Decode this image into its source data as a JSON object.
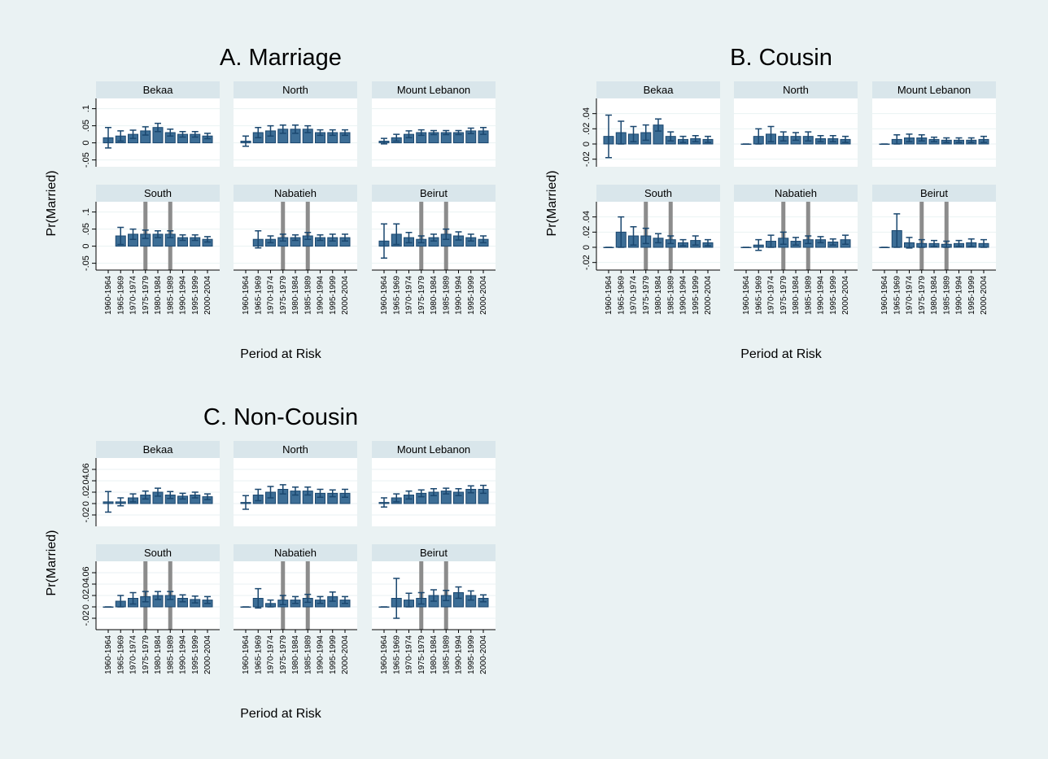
{
  "chart_data": [
    {
      "type": "bar",
      "title": "A. Marriage",
      "ylabel": "Pr(Married)",
      "xlabel": "Period at Risk",
      "categories": [
        "1960-1964",
        "1965-1969",
        "1970-1974",
        "1975-1979",
        "1980-1984",
        "1985-1989",
        "1990-1994",
        "1995-1999",
        "2000-2004"
      ],
      "ylim": [
        -0.07,
        0.13
      ],
      "yticks": [
        {
          "value": -0.05,
          "label": "-.05"
        },
        0,
        {
          "value": 0.05,
          "label": ".05"
        },
        {
          "value": 0.1,
          "label": ".1"
        }
      ],
      "panels": [
        {
          "name": "Bekaa",
          "values": [
            0.015,
            0.02,
            0.025,
            0.035,
            0.045,
            0.03,
            0.025,
            0.025,
            0.02
          ],
          "errors": [
            0.03,
            0.015,
            0.012,
            0.012,
            0.012,
            0.01,
            0.008,
            0.008,
            0.008
          ]
        },
        {
          "name": "North",
          "values": [
            0.005,
            0.03,
            0.035,
            0.04,
            0.04,
            0.04,
            0.03,
            0.03,
            0.03
          ],
          "errors": [
            0.015,
            0.015,
            0.015,
            0.012,
            0.012,
            0.01,
            0.008,
            0.008,
            0.008
          ]
        },
        {
          "name": "Mount Lebanon",
          "values": [
            0.005,
            0.015,
            0.025,
            0.03,
            0.03,
            0.03,
            0.03,
            0.035,
            0.035
          ],
          "errors": [
            0.008,
            0.01,
            0.01,
            0.008,
            0.006,
            0.006,
            0.006,
            0.008,
            0.01
          ]
        },
        {
          "name": "South",
          "values": [
            null,
            0.03,
            0.035,
            0.035,
            0.035,
            0.035,
            0.025,
            0.025,
            0.02
          ],
          "errors": [
            null,
            0.025,
            0.015,
            0.012,
            0.01,
            0.01,
            0.008,
            0.008,
            0.008
          ],
          "vlines": [
            3,
            5
          ]
        },
        {
          "name": "Nabatieh",
          "values": [
            null,
            0.02,
            0.02,
            0.025,
            0.025,
            0.03,
            0.025,
            0.025,
            0.025
          ],
          "errors": [
            null,
            0.025,
            0.01,
            0.01,
            0.008,
            0.01,
            0.008,
            0.01,
            0.01
          ],
          "vlines": [
            3,
            5
          ]
        },
        {
          "name": "Beirut",
          "values": [
            0.015,
            0.035,
            0.025,
            0.02,
            0.025,
            0.035,
            0.03,
            0.025,
            0.02
          ],
          "errors": [
            0.05,
            0.03,
            0.015,
            0.01,
            0.01,
            0.015,
            0.012,
            0.01,
            0.01
          ],
          "vlines": [
            3,
            5
          ]
        }
      ]
    },
    {
      "type": "bar",
      "title": "B. Cousin",
      "ylabel": "Pr(Married)",
      "xlabel": "Period at Risk",
      "categories": [
        "1960-1964",
        "1965-1969",
        "1970-1974",
        "1975-1979",
        "1980-1984",
        "1985-1989",
        "1990-1994",
        "1995-1999",
        "2000-2004"
      ],
      "ylim": [
        -0.03,
        0.06
      ],
      "yticks": [
        {
          "value": -0.02,
          "label": "-.02"
        },
        0,
        {
          "value": 0.02,
          "label": ".02"
        },
        {
          "value": 0.04,
          "label": ".04"
        }
      ],
      "panels": [
        {
          "name": "Bekaa",
          "values": [
            0.01,
            0.015,
            0.013,
            0.015,
            0.025,
            0.01,
            0.006,
            0.007,
            0.006
          ],
          "errors": [
            0.028,
            0.015,
            0.01,
            0.01,
            0.008,
            0.006,
            0.004,
            0.004,
            0.004
          ]
        },
        {
          "name": "North",
          "values": [
            0,
            0.01,
            0.013,
            0.01,
            0.01,
            0.01,
            0.007,
            0.007,
            0.006
          ],
          "errors": [
            0,
            0.01,
            0.01,
            0.006,
            0.005,
            0.006,
            0.004,
            0.004,
            0.004
          ]
        },
        {
          "name": "Mount Lebanon",
          "values": [
            0,
            0.006,
            0.008,
            0.008,
            0.006,
            0.005,
            0.005,
            0.005,
            0.006
          ],
          "errors": [
            0,
            0.006,
            0.005,
            0.004,
            0.003,
            0.003,
            0.003,
            0.003,
            0.004
          ]
        },
        {
          "name": "South",
          "values": [
            0,
            0.02,
            0.015,
            0.015,
            0.012,
            0.01,
            0.006,
            0.009,
            0.006
          ],
          "errors": [
            0,
            0.02,
            0.012,
            0.01,
            0.006,
            0.005,
            0.004,
            0.006,
            0.004
          ],
          "vlines": [
            3,
            5
          ]
        },
        {
          "name": "Nabatieh",
          "values": [
            0,
            0.003,
            0.008,
            0.012,
            0.008,
            0.01,
            0.01,
            0.007,
            0.01
          ],
          "errors": [
            0,
            0.007,
            0.008,
            0.008,
            0.005,
            0.005,
            0.004,
            0.004,
            0.006
          ],
          "vlines": [
            3,
            5
          ]
        },
        {
          "name": "Beirut",
          "values": [
            0,
            0.022,
            0.006,
            0.005,
            0.005,
            0.004,
            0.005,
            0.006,
            0.005
          ],
          "errors": [
            0,
            0.022,
            0.007,
            0.005,
            0.004,
            0.004,
            0.004,
            0.005,
            0.005
          ],
          "vlines": [
            3,
            5
          ]
        }
      ]
    },
    {
      "type": "bar",
      "title": "C. Non-Cousin",
      "ylabel": "Pr(Married)",
      "xlabel": "Period at Risk",
      "categories": [
        "1960-1964",
        "1965-1969",
        "1970-1974",
        "1975-1979",
        "1980-1984",
        "1985-1989",
        "1990-1994",
        "1995-1999",
        "2000-2004"
      ],
      "ylim": [
        -0.04,
        0.08
      ],
      "yticks": [
        {
          "value": -0.02,
          "label": "-.02"
        },
        0,
        {
          "value": 0.02,
          "label": ".02"
        },
        {
          "value": 0.04,
          "label": ".04"
        },
        {
          "value": 0.06,
          "label": ".06"
        }
      ],
      "panels": [
        {
          "name": "Bekaa",
          "values": [
            0.003,
            0.003,
            0.01,
            0.015,
            0.02,
            0.015,
            0.013,
            0.015,
            0.012
          ],
          "errors": [
            0.018,
            0.007,
            0.007,
            0.007,
            0.007,
            0.006,
            0.005,
            0.005,
            0.005
          ]
        },
        {
          "name": "North",
          "values": [
            0.002,
            0.015,
            0.02,
            0.025,
            0.022,
            0.022,
            0.018,
            0.018,
            0.018
          ],
          "errors": [
            0.012,
            0.01,
            0.01,
            0.008,
            0.007,
            0.007,
            0.007,
            0.006,
            0.007
          ]
        },
        {
          "name": "Mount Lebanon",
          "values": [
            0.002,
            0.01,
            0.015,
            0.018,
            0.02,
            0.022,
            0.02,
            0.025,
            0.025
          ],
          "errors": [
            0.008,
            0.007,
            0.007,
            0.006,
            0.006,
            0.005,
            0.006,
            0.006,
            0.007
          ]
        },
        {
          "name": "South",
          "values": [
            0,
            0.01,
            0.015,
            0.018,
            0.02,
            0.02,
            0.015,
            0.013,
            0.012
          ],
          "errors": [
            0,
            0.01,
            0.01,
            0.009,
            0.007,
            0.007,
            0.006,
            0.006,
            0.006
          ],
          "vlines": [
            3,
            5
          ]
        },
        {
          "name": "Nabatieh",
          "values": [
            0,
            0.015,
            0.006,
            0.012,
            0.012,
            0.015,
            0.012,
            0.018,
            0.012
          ],
          "errors": [
            0,
            0.017,
            0.006,
            0.008,
            0.006,
            0.007,
            0.006,
            0.008,
            0.006
          ],
          "vlines": [
            3,
            5
          ]
        },
        {
          "name": "Beirut",
          "values": [
            0,
            0.015,
            0.012,
            0.015,
            0.02,
            0.02,
            0.025,
            0.02,
            0.015
          ],
          "errors": [
            0,
            0.035,
            0.012,
            0.01,
            0.01,
            0.009,
            0.01,
            0.008,
            0.006
          ],
          "vlines": [
            3,
            5
          ]
        }
      ]
    }
  ]
}
